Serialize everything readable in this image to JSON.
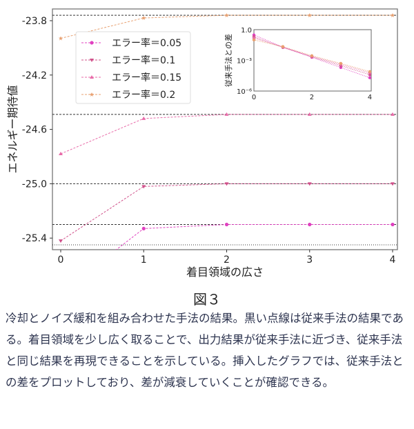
{
  "chart_data": [
    {
      "type": "line",
      "xlabel": "着目領域の広さ",
      "ylabel": "エネルギー期待値",
      "x": [
        0,
        1,
        2,
        3,
        4
      ],
      "xticks": [
        "0",
        "1",
        "2",
        "3",
        "4"
      ],
      "yticks": [
        "-23.8",
        "-24.2",
        "-24.6",
        "-25.0",
        "-25.4"
      ],
      "ytick_values": [
        -23.8,
        -24.2,
        -24.6,
        -25.0,
        -25.4
      ],
      "xlim": [
        -0.1,
        4.05
      ],
      "ylim": [
        -25.47,
        -23.72
      ],
      "legend_position": "upper-left",
      "series": [
        {
          "name": "エラー率＝0.05",
          "values": [
            -25.8,
            -25.33,
            -25.3,
            -25.3,
            -25.3
          ],
          "color": "#e040c0",
          "marker": "circle"
        },
        {
          "name": "エラー率＝0.1",
          "values": [
            -25.42,
            -25.02,
            -25.0,
            -25.0,
            -25.0
          ],
          "color": "#d0508a",
          "marker": "triangle-down"
        },
        {
          "name": "エラー率＝0.15",
          "values": [
            -24.78,
            -24.52,
            -24.49,
            -24.49,
            -24.49
          ],
          "color": "#e86aa8",
          "marker": "triangle-up"
        },
        {
          "name": "エラー率＝0.2",
          "values": [
            -23.93,
            -23.78,
            -23.76,
            -23.76,
            -23.76
          ],
          "color": "#e8a070",
          "marker": "star"
        }
      ],
      "reference_lines": [
        -23.76,
        -24.49,
        -25.0,
        -25.3,
        -25.45
      ],
      "reference_color": "#333333"
    },
    {
      "type": "line",
      "ylabel": "従来手法との差",
      "yscale": "log",
      "x": [
        0,
        1,
        2,
        3,
        4
      ],
      "xticks": [
        "0",
        "2",
        "4"
      ],
      "yticks": [
        "1.0",
        "10⁻³",
        "10⁻⁶"
      ],
      "ylim": [
        1e-06,
        1
      ],
      "xlim": [
        0,
        4.05
      ],
      "series": [
        {
          "values": [
            0.3,
            0.02,
            0.002,
            0.0002,
            2e-05
          ],
          "color": "#e040c0"
        },
        {
          "values": [
            0.2,
            0.018,
            0.0022,
            0.0003,
            4e-05
          ],
          "color": "#d0508a"
        },
        {
          "values": [
            0.15,
            0.02,
            0.0025,
            0.0004,
            6e-05
          ],
          "color": "#e86aa8"
        },
        {
          "values": [
            0.1,
            0.022,
            0.0028,
            0.0005,
            8e-05
          ],
          "color": "#e8a070"
        }
      ]
    }
  ],
  "figure_label": "図３",
  "caption": "冷却とノイズ緩和を組み合わせた手法の結果。黒い点線は従来手法の結果である。着目領域を少し広く取ることで、出力結果が従来手法に近づき、従来手法と同じ結果を再現できることを示している。挿入したグラフでは、従来手法との差をプロットしており、差が減衰していくことが確認できる。"
}
